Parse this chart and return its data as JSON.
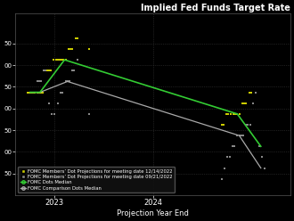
{
  "title": "Implied Fed Funds Target Rate",
  "xlabel": "Projection Year End",
  "background_color": "#000000",
  "text_color": "#ffffff",
  "yellow_dots": {
    "color": "#cccc00",
    "label": "FOMC Members’ Dot Projections for meeting date 12/14/2022",
    "points": [
      [
        2022.72,
        4.375
      ],
      [
        2022.74,
        4.375
      ],
      [
        2022.76,
        4.375
      ],
      [
        2022.78,
        4.375
      ],
      [
        2022.8,
        4.375
      ],
      [
        2022.82,
        4.375
      ],
      [
        2022.84,
        4.375
      ],
      [
        2022.86,
        4.375
      ],
      [
        2022.88,
        4.375
      ],
      [
        2022.92,
        4.875
      ],
      [
        2022.94,
        4.875
      ],
      [
        2022.96,
        4.875
      ],
      [
        2022.99,
        5.125
      ],
      [
        2023.01,
        5.125
      ],
      [
        2023.03,
        5.125
      ],
      [
        2023.05,
        5.125
      ],
      [
        2023.07,
        5.125
      ],
      [
        2023.09,
        5.125
      ],
      [
        2023.11,
        5.125
      ],
      [
        2023.14,
        5.375
      ],
      [
        2023.16,
        5.375
      ],
      [
        2023.18,
        5.375
      ],
      [
        2023.21,
        5.625
      ],
      [
        2023.23,
        5.625
      ],
      [
        2023.35,
        5.375
      ],
      [
        2024.7,
        3.625
      ],
      [
        2024.72,
        3.625
      ],
      [
        2024.75,
        3.875
      ],
      [
        2024.77,
        3.875
      ],
      [
        2024.79,
        3.875
      ],
      [
        2024.82,
        3.875
      ],
      [
        2024.84,
        3.875
      ],
      [
        2024.86,
        3.875
      ],
      [
        2024.88,
        3.875
      ],
      [
        2024.91,
        4.125
      ],
      [
        2024.93,
        4.125
      ],
      [
        2024.95,
        4.125
      ],
      [
        2024.98,
        4.375
      ],
      [
        2025.0,
        4.375
      ]
    ]
  },
  "gray_dots": {
    "color": "#888888",
    "label": "FOMC Members’ Dot Projections for meeting date 09/21/2022",
    "points": [
      [
        2022.72,
        4.375
      ],
      [
        2022.74,
        4.375
      ],
      [
        2022.76,
        4.375
      ],
      [
        2022.78,
        4.375
      ],
      [
        2022.82,
        4.625
      ],
      [
        2022.84,
        4.625
      ],
      [
        2022.86,
        4.625
      ],
      [
        2022.89,
        4.875
      ],
      [
        2022.91,
        4.875
      ],
      [
        2022.94,
        4.125
      ],
      [
        2022.97,
        3.875
      ],
      [
        2023.0,
        3.875
      ],
      [
        2023.03,
        4.125
      ],
      [
        2023.06,
        4.375
      ],
      [
        2023.08,
        4.375
      ],
      [
        2023.11,
        4.625
      ],
      [
        2023.13,
        4.625
      ],
      [
        2023.15,
        4.625
      ],
      [
        2023.18,
        4.875
      ],
      [
        2023.2,
        4.875
      ],
      [
        2023.23,
        5.125
      ],
      [
        2023.35,
        3.875
      ],
      [
        2024.7,
        2.375
      ],
      [
        2024.73,
        2.625
      ],
      [
        2024.76,
        2.875
      ],
      [
        2024.78,
        2.875
      ],
      [
        2024.81,
        3.125
      ],
      [
        2024.83,
        3.125
      ],
      [
        2024.86,
        3.375
      ],
      [
        2024.88,
        3.375
      ],
      [
        2024.9,
        3.375
      ],
      [
        2024.92,
        3.375
      ],
      [
        2024.95,
        3.625
      ],
      [
        2024.97,
        3.625
      ],
      [
        2024.99,
        3.625
      ],
      [
        2025.02,
        4.125
      ],
      [
        2025.05,
        4.375
      ],
      [
        2025.08,
        3.125
      ],
      [
        2025.11,
        2.875
      ],
      [
        2025.14,
        2.625
      ]
    ]
  },
  "green_line": {
    "color": "#33cc33",
    "label": "FOMC Dots Median",
    "x": [
      2022.75,
      2022.85,
      2023.1,
      2024.86,
      2025.1
    ],
    "y": [
      4.375,
      4.375,
      5.125,
      3.875,
      3.125
    ]
  },
  "gray_line": {
    "color": "#aaaaaa",
    "label": "FOMC Comparison Dots Median",
    "x": [
      2022.75,
      2022.85,
      2023.13,
      2024.88,
      2025.1
    ],
    "y": [
      4.375,
      4.375,
      4.625,
      3.375,
      2.625
    ]
  },
  "ylim": [
    2.0,
    6.2
  ],
  "xlim": [
    2022.6,
    2025.4
  ],
  "yticks": [
    2.5,
    3.0,
    3.5,
    4.0,
    4.5,
    5.0,
    5.5
  ],
  "ytick_labels": [
    "50",
    "00",
    "50",
    "00",
    "50",
    "00",
    "50"
  ],
  "xticks": [
    2023,
    2024
  ],
  "xtick_labels": [
    "2023",
    "2024"
  ]
}
